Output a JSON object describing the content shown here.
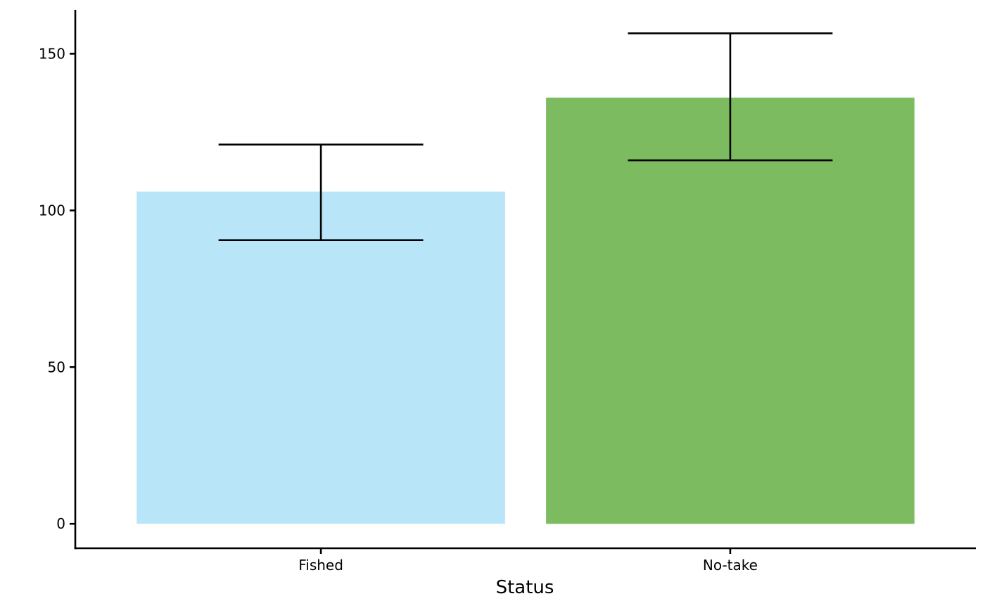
{
  "chart_data": {
    "type": "bar",
    "categories": [
      "Fished",
      "No-take"
    ],
    "values": [
      106,
      136
    ],
    "error_bars": {
      "lower": [
        90.5,
        116
      ],
      "upper": [
        121,
        156.5
      ]
    },
    "colors": [
      "#b9e5f9",
      "#7dbb61"
    ],
    "title": "",
    "xlabel": "Status",
    "ylabel": "",
    "ylim": [
      -7.8,
      164
    ],
    "yticks": [
      0,
      50,
      100,
      150
    ],
    "grid": false,
    "legend": "none"
  }
}
